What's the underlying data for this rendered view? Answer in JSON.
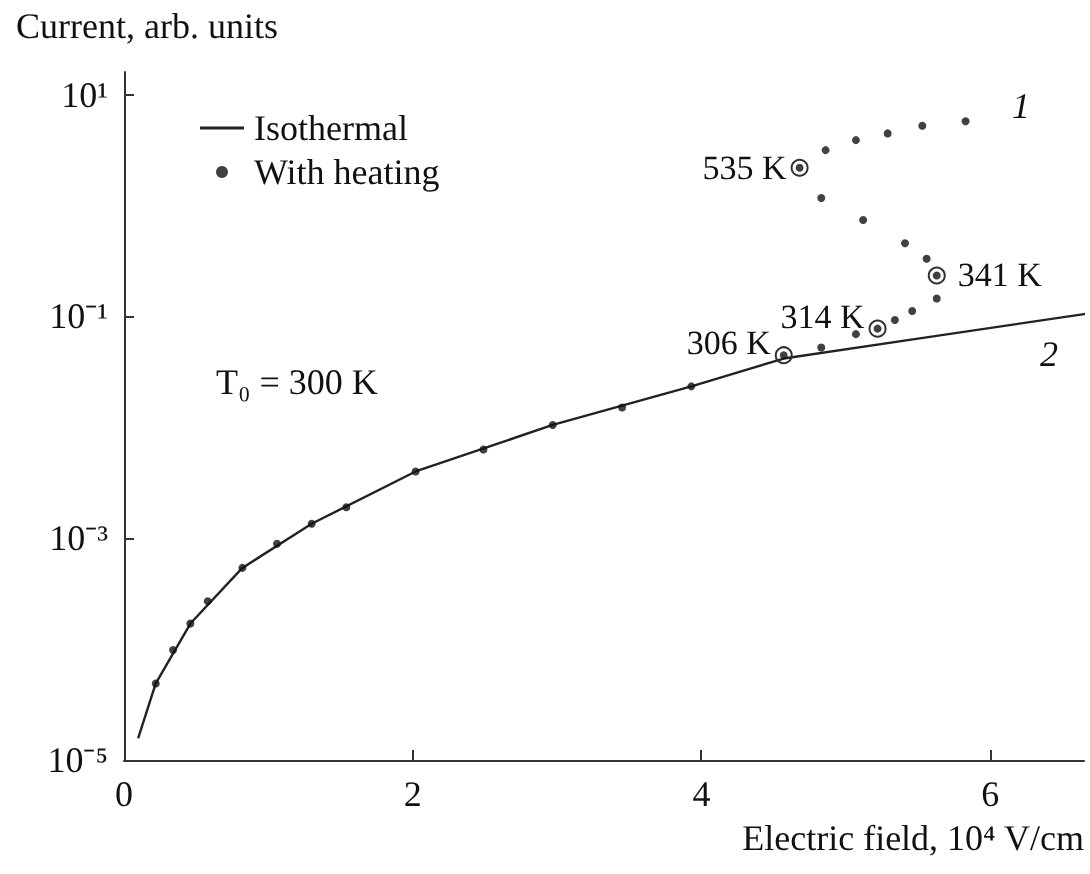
{
  "chart_data": {
    "type": "scatter",
    "xlabel": "Electric field, 10⁴ V/cm",
    "ylabel": "Current, arb. units",
    "xlim": [
      0,
      6.65
    ],
    "xticks": [
      0,
      2,
      4,
      6
    ],
    "ylim": [
      1e-05,
      16
    ],
    "yticks": [
      {
        "value": 1e-05,
        "label": "10⁻⁵"
      },
      {
        "value": 0.001,
        "label": "10⁻³"
      },
      {
        "value": 0.1,
        "label": "10⁻¹"
      },
      {
        "value": 10,
        "label": "10¹"
      }
    ],
    "log": "y",
    "grid": false,
    "legend": "top left",
    "series": [
      {
        "name": "Isothermal",
        "type": "line",
        "marker": "none",
        "line_style": "solid",
        "color": "#222222",
        "x": [
          0.1,
          0.22,
          0.46,
          0.82,
          1.3,
          2.02,
          2.97,
          3.93,
          4.57,
          5.5,
          6.65
        ],
        "values": [
          1.6e-05,
          4.9e-05,
          0.00017,
          0.00054,
          0.00135,
          0.004,
          0.0105,
          0.0234,
          0.0417,
          0.063,
          0.105
        ]
      },
      {
        "name": "With heating",
        "marker": "circle",
        "color": "#111111",
        "x": [
          0.22,
          0.34,
          0.46,
          0.58,
          0.82,
          1.06,
          1.3,
          1.54,
          2.02,
          2.49,
          2.97,
          3.45,
          3.93,
          4.57,
          4.83,
          5.07,
          5.22,
          5.34,
          5.46,
          5.63,
          5.63,
          5.56,
          5.41,
          5.12,
          4.83,
          4.68,
          4.86,
          5.07,
          5.29,
          5.53,
          5.83
        ],
        "values": [
          4.9e-05,
          9.8e-05,
          0.00017,
          0.00027,
          0.00054,
          0.00089,
          0.00135,
          0.0019,
          0.004,
          0.0063,
          0.0105,
          0.0151,
          0.0234,
          0.0447,
          0.0525,
          0.0692,
          0.0776,
          0.093,
          0.112,
          0.145,
          0.234,
          0.331,
          0.457,
          0.741,
          1.17,
          2.19,
          3.16,
          3.89,
          4.47,
          5.25,
          5.75
        ]
      }
    ],
    "annotations": [
      {
        "text": "535 K",
        "x": 4.68,
        "y": 2.19
      },
      {
        "text": "341 K",
        "x": 5.63,
        "y": 0.234
      },
      {
        "text": "314 K",
        "x": 5.22,
        "y": 0.0776
      },
      {
        "text": "306 K",
        "x": 4.57,
        "y": 0.0447
      },
      "T₀ = 300 K",
      "1",
      "2"
    ]
  }
}
